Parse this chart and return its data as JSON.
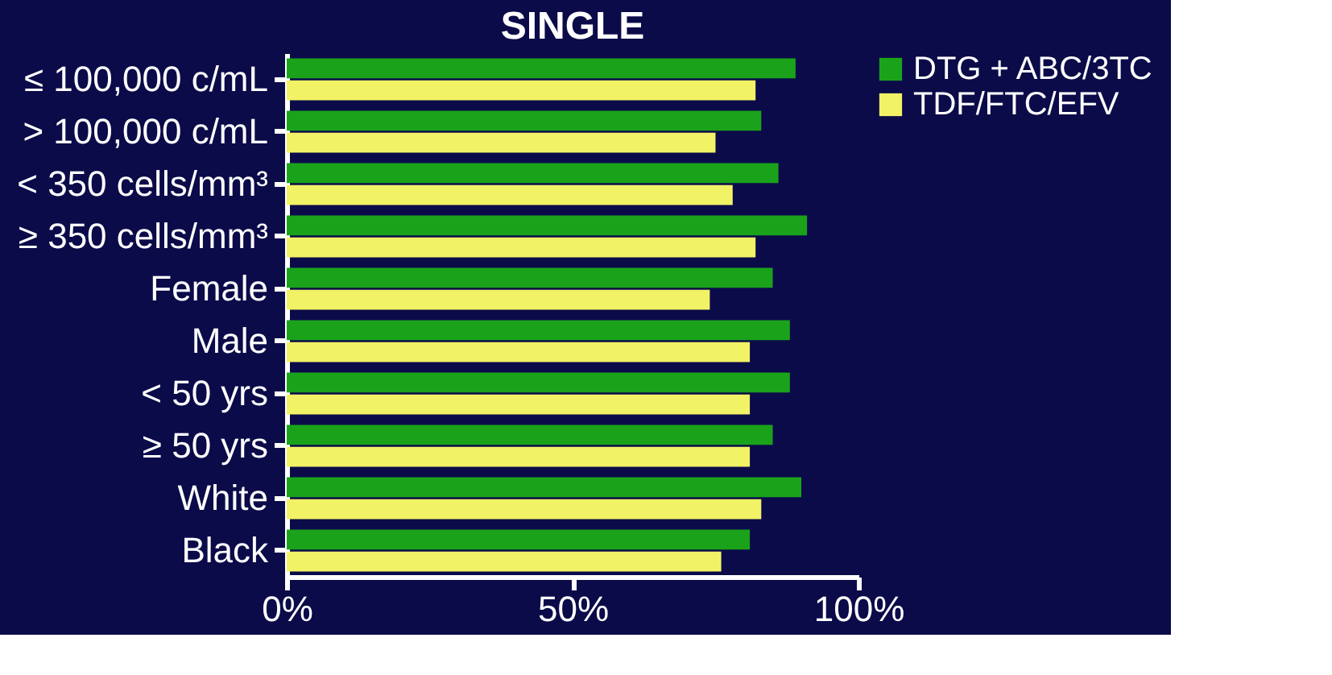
{
  "chart_data": {
    "type": "bar",
    "orientation": "horizontal",
    "title": "SINGLE",
    "categories": [
      "≤ 100,000 c/mL",
      "> 100,000 c/mL",
      "< 350 cells/mm³",
      "≥ 350 cells/mm³",
      "Female",
      "Male",
      "< 50 yrs",
      "≥ 50 yrs",
      "White",
      "Black"
    ],
    "series": [
      {
        "name": "DTG + ABC/3TC",
        "color": "#1aa31a",
        "values": [
          89,
          83,
          86,
          91,
          85,
          88,
          88,
          85,
          90,
          81
        ]
      },
      {
        "name": "TDF/FTC/EFV",
        "color": "#f2f266",
        "values": [
          82,
          75,
          78,
          82,
          74,
          81,
          81,
          81,
          83,
          76
        ]
      }
    ],
    "xlim": [
      0,
      100
    ],
    "xticks": [
      {
        "value": 0,
        "label": "0%"
      },
      {
        "value": 50,
        "label": "50%"
      },
      {
        "value": 100,
        "label": "100%"
      }
    ],
    "legend": "right",
    "grid": false
  }
}
